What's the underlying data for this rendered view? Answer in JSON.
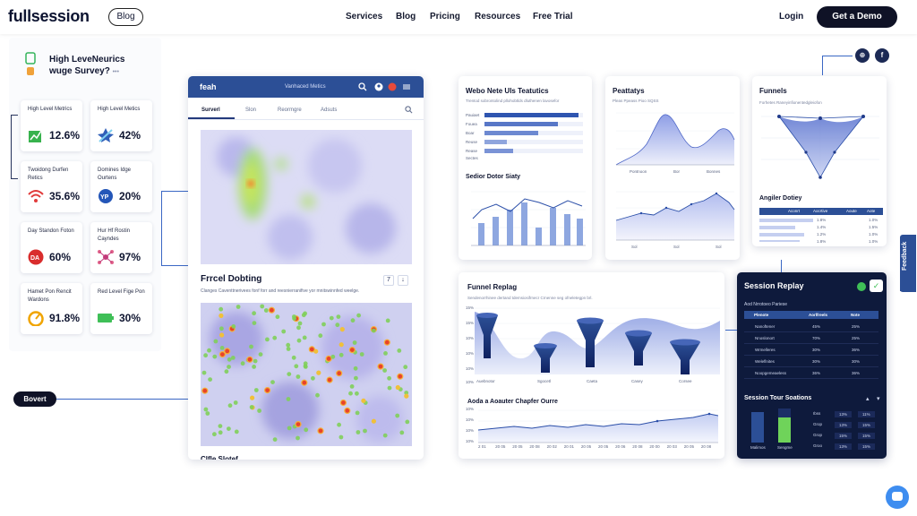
{
  "nav": {
    "logo": "fullsession",
    "blog_pill": "Blog",
    "links": [
      "Services",
      "Blog",
      "Pricing",
      "Resources",
      "Free Trial"
    ],
    "login": "Login",
    "cta": "Get a Demo"
  },
  "left": {
    "title_line1": "High LeveNeurics",
    "title_line2": "wuge Survey?",
    "title_dots": "•••",
    "cards": [
      {
        "label": "High Level Metrics",
        "value": "12.6%",
        "icon": "chart-up-icon"
      },
      {
        "label": "High Level Metics",
        "value": "42%",
        "icon": "star-arrow-icon"
      },
      {
        "label": "Twoidong Durfen Retics",
        "value": "35.6%",
        "icon": "wifi-icon"
      },
      {
        "label": "Domines Idge Ourtens",
        "value": "20%",
        "icon": "badge-icon"
      },
      {
        "label": "Day Standon Foton",
        "value": "60%",
        "icon": "da-icon"
      },
      {
        "label": "Hur Hf Rostin Cayndes",
        "value": "97%",
        "icon": "network-icon"
      },
      {
        "label": "Hamet Pon Rencit Wardons",
        "value": "91.8%",
        "icon": "gauge-icon"
      },
      {
        "label": "Red Level Fige Pon",
        "value": "30%",
        "icon": "battery-icon"
      }
    ]
  },
  "bovert_label": "Bovert",
  "heatmap_card": {
    "brand": "feah",
    "subtitle": "Vanhaced Metics",
    "tabs": [
      "Surverl",
      "Slon",
      "Reormgre",
      "Adsuts"
    ],
    "section_title": "Frrcel Dobting",
    "section_sub": "Clanges Caventtnerivees fonf forr and reesnierranifive yor mnitswinnfed weelge.",
    "btn_a": "7",
    "btn_b": "↓",
    "footer_text": "Clfle Slotef"
  },
  "web_card": {
    "title": "Webo Nete Uls Teatutics",
    "sub": "Trentod sobrontolind pllohobtlds dluthenen lavosefor",
    "section2_title": "Sedior Dotor Siaty",
    "row_labels": [
      "Pauiaet",
      "Fouea",
      "Boar",
      "Reuse",
      "Rease",
      "Sectes"
    ]
  },
  "peat_card": {
    "title": "Peattatys",
    "sub": "Pleas Ppeass Pioo SQSS",
    "labels_top": [
      "Pontnoon",
      "Bor",
      "Bonnes"
    ],
    "labels_bottom": [
      "Sol",
      "Sol",
      "Sol"
    ]
  },
  "funnels_card": {
    "title": "Funnels",
    "sub": "Forhetes Raneyinfionentedgleiofon",
    "section2_title": "Angiler Dotiey",
    "table_heads": [
      "Aconrt",
      "Aocrtive",
      "Aoute",
      "Aote"
    ],
    "table_rows": [
      [
        "1.8%",
        "1.0%"
      ],
      [
        "1.4%",
        "1.5%"
      ],
      [
        "1.2%",
        "1.0%"
      ],
      [
        "1.8%",
        "1.0%"
      ]
    ]
  },
  "funnel_replay_card": {
    "title": "Funnel Replag",
    "sub": "Sendenorrhinee dertand tdemsiosifrnecr Crnenne seg ofneletegpn brl.",
    "y_ticks": [
      "15%",
      "15%",
      "10%",
      "10%",
      "10%",
      "10%"
    ],
    "stage_labels": [
      "Auebnotor",
      "Sgocetl",
      "Caeta",
      "Casey",
      "Corsee"
    ],
    "section2_title": "Aoda a Aoauter Chapfer Ourre",
    "y2_ticks": [
      "10%",
      "10%",
      "10%",
      "10%"
    ],
    "x2_ticks": [
      "2 01",
      "20 05",
      "20 05",
      "20 08",
      "20 02",
      "20 01",
      "20 05",
      "20 05",
      "20 06",
      "20 08",
      "20 00",
      "20 03",
      "20 05",
      "20 08"
    ]
  },
  "replay_card": {
    "title": "Session Replay",
    "sub": "Aod Nrrotoeo Pariese",
    "heads": [
      "Plenote",
      "Aorlfreels",
      "Note"
    ],
    "rows": [
      [
        "Nanoftener",
        "45%",
        "25%"
      ],
      [
        "Nnoslonort",
        "70%",
        "25%"
      ],
      [
        "Wrmelleres",
        "30%",
        "36%"
      ],
      [
        "Weleflnites",
        "30%",
        "30%"
      ],
      [
        "Noopgemeaeless",
        "36%",
        "36%"
      ]
    ],
    "section2_title": "Session Tour Soations",
    "rows2": [
      [
        "Ibss",
        "13%",
        "11%"
      ],
      [
        "Grop",
        "13%",
        "15%"
      ],
      [
        "Grop",
        "15%",
        "15%"
      ],
      [
        "Groo",
        "13%",
        "15%"
      ]
    ],
    "bar_labels": [
      "Malimos",
      "Sengme"
    ]
  },
  "feedback_label": "Feedback",
  "colors": {
    "accent": "#2c4f96",
    "dark": "#0f1226",
    "heat_green": "#8fd35a",
    "heat_red": "#e8432b"
  }
}
